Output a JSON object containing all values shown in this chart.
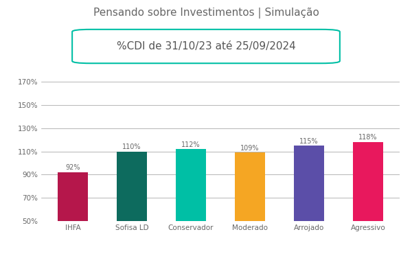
{
  "title": "Pensando sobre Investimentos | Simulação",
  "subtitle": "%CDI de 31/10/23 até 25/09/2024",
  "categories": [
    "IHFA",
    "Sofisa LD",
    "Conservador",
    "Moderado",
    "Arrojado",
    "Agressivo"
  ],
  "values": [
    92,
    110,
    112,
    109,
    115,
    118
  ],
  "bar_colors": [
    "#b5174b",
    "#0d6b5e",
    "#00bfa5",
    "#f5a623",
    "#5b4ea8",
    "#e8185d"
  ],
  "bar_labels": [
    "92%",
    "110%",
    "112%",
    "109%",
    "115%",
    "118%"
  ],
  "ylim": [
    50,
    175
  ],
  "yticks": [
    50,
    70,
    90,
    110,
    130,
    150,
    170
  ],
  "ytick_labels": [
    "50%",
    "70%",
    "90%",
    "110%",
    "130%",
    "150%",
    "170%"
  ],
  "title_color": "#666666",
  "subtitle_text_color": "#555555",
  "subtitle_box_color": "#00bfa5",
  "label_color": "#666666",
  "grid_color": "#999999",
  "background_color": "#ffffff",
  "title_fontsize": 11,
  "subtitle_fontsize": 11,
  "bar_label_fontsize": 7,
  "tick_fontsize": 7.5,
  "bar_width": 0.52
}
